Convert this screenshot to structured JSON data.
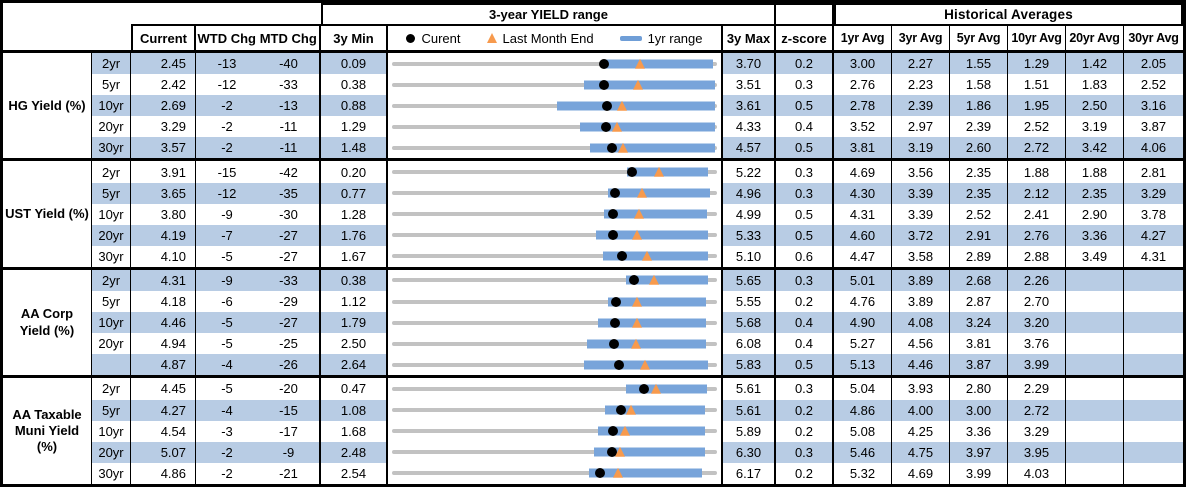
{
  "colors": {
    "band_blue": "#b8cce4",
    "bar_blue": "#78a4da",
    "range_gray": "#c2c2c2",
    "triangle_orange": "#f79a4d",
    "dot_black": "#000000",
    "border_black": "#000000"
  },
  "chart_data": {
    "type": "table",
    "title": "3-year YIELD range",
    "historical_title": "Historical Averages",
    "columns": {
      "current": "Current",
      "wtd": "WTD Chg",
      "mtd": "MTD Chg",
      "min": "3y Min",
      "max": "3y Max",
      "zscore": "z-score",
      "avgs": [
        "1yr Avg",
        "3yr Avg",
        "5yr Avg",
        "10yr Avg",
        "20yr Avg",
        "30yr Avg"
      ]
    },
    "legend": [
      {
        "marker": "black-dot",
        "label": "Curent"
      },
      {
        "marker": "orange-triangle",
        "label": "Last Month End"
      },
      {
        "marker": "blue-bar",
        "label": "1yr range"
      }
    ],
    "chart_semantics": {
      "gray_line": "3y min to 3y max",
      "blue_bar": "1yr range",
      "dot": "current yield",
      "triangle": "last month end yield",
      "units": "percent"
    },
    "groups": [
      {
        "label": "HG Yield (%)",
        "rows": [
          {
            "tenor": "2yr",
            "current": "2.45",
            "wtd": "-13",
            "mtd": "-40",
            "min": "0.09",
            "max": "3.70",
            "z": "0.2",
            "avgs": [
              "3.00",
              "2.27",
              "1.55",
              "1.29",
              "1.42",
              "2.05"
            ],
            "chart": {
              "lo": 0.09,
              "hi": 3.7,
              "bar": [
                2.42,
                3.66
              ],
              "dot": 2.45,
              "tri": 2.85
            }
          },
          {
            "tenor": "5yr",
            "current": "2.42",
            "wtd": "-12",
            "mtd": "-33",
            "min": "0.38",
            "max": "3.51",
            "z": "0.3",
            "avgs": [
              "2.76",
              "2.23",
              "1.58",
              "1.51",
              "1.83",
              "2.52"
            ],
            "chart": {
              "lo": 0.38,
              "hi": 3.51,
              "bar": [
                2.23,
                3.49
              ],
              "dot": 2.42,
              "tri": 2.75
            }
          },
          {
            "tenor": "10yr",
            "current": "2.69",
            "wtd": "-2",
            "mtd": "-13",
            "min": "0.88",
            "max": "3.61",
            "z": "0.5",
            "avgs": [
              "2.78",
              "2.39",
              "1.86",
              "1.95",
              "2.50",
              "3.16"
            ],
            "chart": {
              "lo": 0.88,
              "hi": 3.61,
              "bar": [
                2.27,
                3.59
              ],
              "dot": 2.69,
              "tri": 2.82
            }
          },
          {
            "tenor": "20yr",
            "current": "3.29",
            "wtd": "-2",
            "mtd": "-11",
            "min": "1.29",
            "max": "4.33",
            "z": "0.4",
            "avgs": [
              "3.52",
              "2.97",
              "2.39",
              "2.52",
              "3.19",
              "3.87"
            ],
            "chart": {
              "lo": 1.29,
              "hi": 4.33,
              "bar": [
                3.05,
                4.31
              ],
              "dot": 3.29,
              "tri": 3.4
            }
          },
          {
            "tenor": "30yr",
            "current": "3.57",
            "wtd": "-2",
            "mtd": "-11",
            "min": "1.48",
            "max": "4.57",
            "z": "0.5",
            "avgs": [
              "3.81",
              "3.19",
              "2.60",
              "2.72",
              "3.42",
              "4.06"
            ],
            "chart": {
              "lo": 1.48,
              "hi": 4.57,
              "bar": [
                3.36,
                4.55
              ],
              "dot": 3.57,
              "tri": 3.68
            }
          }
        ]
      },
      {
        "label": "UST Yield (%)",
        "rows": [
          {
            "tenor": "2yr",
            "current": "3.91",
            "wtd": "-15",
            "mtd": "-42",
            "min": "0.20",
            "max": "5.22",
            "z": "0.3",
            "avgs": [
              "4.69",
              "3.56",
              "2.35",
              "1.88",
              "1.88",
              "2.81"
            ],
            "chart": {
              "lo": 0.2,
              "hi": 5.22,
              "bar": [
                3.83,
                5.08
              ],
              "dot": 3.91,
              "tri": 4.33
            }
          },
          {
            "tenor": "5yr",
            "current": "3.65",
            "wtd": "-12",
            "mtd": "-35",
            "min": "0.77",
            "max": "4.96",
            "z": "0.3",
            "avgs": [
              "4.30",
              "3.39",
              "2.35",
              "2.12",
              "2.35",
              "3.29"
            ],
            "chart": {
              "lo": 0.77,
              "hi": 4.96,
              "bar": [
                3.56,
                4.87
              ],
              "dot": 3.65,
              "tri": 4.0
            }
          },
          {
            "tenor": "10yr",
            "current": "3.80",
            "wtd": "-9",
            "mtd": "-30",
            "min": "1.28",
            "max": "4.99",
            "z": "0.5",
            "avgs": [
              "4.31",
              "3.39",
              "2.52",
              "2.41",
              "2.90",
              "3.78"
            ],
            "chart": {
              "lo": 1.28,
              "hi": 4.99,
              "bar": [
                3.7,
                4.88
              ],
              "dot": 3.8,
              "tri": 4.1
            }
          },
          {
            "tenor": "20yr",
            "current": "4.19",
            "wtd": "-7",
            "mtd": "-27",
            "min": "1.76",
            "max": "5.33",
            "z": "0.5",
            "avgs": [
              "4.60",
              "3.72",
              "2.91",
              "2.76",
              "3.36",
              "4.27"
            ],
            "chart": {
              "lo": 1.76,
              "hi": 5.33,
              "bar": [
                4.0,
                5.23
              ],
              "dot": 4.19,
              "tri": 4.46
            }
          },
          {
            "tenor": "30yr",
            "current": "4.10",
            "wtd": "-5",
            "mtd": "-27",
            "min": "1.67",
            "max": "5.10",
            "z": "0.6",
            "avgs": [
              "4.47",
              "3.58",
              "2.89",
              "2.88",
              "3.49",
              "4.31"
            ],
            "chart": {
              "lo": 1.67,
              "hi": 5.1,
              "bar": [
                3.9,
                5.0
              ],
              "dot": 4.1,
              "tri": 4.37
            }
          }
        ]
      },
      {
        "label": "AA Corp Yield (%)",
        "rows": [
          {
            "tenor": "2yr",
            "current": "4.31",
            "wtd": "-9",
            "mtd": "-33",
            "min": "0.38",
            "max": "5.65",
            "z": "0.3",
            "avgs": [
              "5.01",
              "3.89",
              "2.68",
              "2.26",
              "",
              ""
            ],
            "chart": {
              "lo": 0.38,
              "hi": 5.65,
              "bar": [
                4.17,
                5.5
              ],
              "dot": 4.31,
              "tri": 4.64
            }
          },
          {
            "tenor": "5yr",
            "current": "4.18",
            "wtd": "-6",
            "mtd": "-29",
            "min": "1.12",
            "max": "5.55",
            "z": "0.2",
            "avgs": [
              "4.76",
              "3.89",
              "2.87",
              "2.70",
              "",
              ""
            ],
            "chart": {
              "lo": 1.12,
              "hi": 5.55,
              "bar": [
                4.07,
                5.4
              ],
              "dot": 4.18,
              "tri": 4.47
            }
          },
          {
            "tenor": "10yr",
            "current": "4.46",
            "wtd": "-5",
            "mtd": "-27",
            "min": "1.79",
            "max": "5.68",
            "z": "0.4",
            "avgs": [
              "4.90",
              "4.08",
              "3.24",
              "3.20",
              "",
              ""
            ],
            "chart": {
              "lo": 1.79,
              "hi": 5.68,
              "bar": [
                4.26,
                5.55
              ],
              "dot": 4.46,
              "tri": 4.73
            }
          },
          {
            "tenor": "20yr",
            "current": "4.94",
            "wtd": "-5",
            "mtd": "-25",
            "min": "2.50",
            "max": "6.08",
            "z": "0.4",
            "avgs": [
              "5.27",
              "4.56",
              "3.81",
              "3.76",
              "",
              ""
            ],
            "chart": {
              "lo": 2.5,
              "hi": 6.08,
              "bar": [
                4.65,
                5.96
              ],
              "dot": 4.94,
              "tri": 5.19
            }
          },
          {
            "tenor": "",
            "current": "4.87",
            "wtd": "-4",
            "mtd": "-26",
            "min": "2.64",
            "max": "5.83",
            "z": "0.5",
            "avgs": [
              "5.13",
              "4.46",
              "3.87",
              "3.99",
              "",
              ""
            ],
            "chart": {
              "lo": 2.64,
              "hi": 5.83,
              "bar": [
                4.52,
                5.74
              ],
              "dot": 4.87,
              "tri": 5.13
            }
          }
        ]
      },
      {
        "label": "AA Taxable Muni Yield (%)",
        "rows": [
          {
            "tenor": "2yr",
            "current": "4.45",
            "wtd": "-5",
            "mtd": "-20",
            "min": "0.47",
            "max": "5.61",
            "z": "0.3",
            "avgs": [
              "5.04",
              "3.93",
              "2.80",
              "2.29",
              "",
              ""
            ],
            "chart": {
              "lo": 0.47,
              "hi": 5.61,
              "bar": [
                4.17,
                5.45
              ],
              "dot": 4.45,
              "tri": 4.65
            }
          },
          {
            "tenor": "5yr",
            "current": "4.27",
            "wtd": "-4",
            "mtd": "-15",
            "min": "1.08",
            "max": "5.61",
            "z": "0.2",
            "avgs": [
              "4.86",
              "4.00",
              "3.00",
              "2.72",
              "",
              ""
            ],
            "chart": {
              "lo": 1.08,
              "hi": 5.61,
              "bar": [
                4.05,
                5.44
              ],
              "dot": 4.27,
              "tri": 4.42
            }
          },
          {
            "tenor": "10yr",
            "current": "4.54",
            "wtd": "-3",
            "mtd": "-17",
            "min": "1.68",
            "max": "5.89",
            "z": "0.2",
            "avgs": [
              "5.08",
              "4.25",
              "3.36",
              "3.29",
              "",
              ""
            ],
            "chart": {
              "lo": 1.68,
              "hi": 5.89,
              "bar": [
                4.35,
                5.73
              ],
              "dot": 4.54,
              "tri": 4.71
            }
          },
          {
            "tenor": "20yr",
            "current": "5.07",
            "wtd": "-2",
            "mtd": "-9",
            "min": "2.48",
            "max": "6.30",
            "z": "0.3",
            "avgs": [
              "5.46",
              "4.75",
              "3.97",
              "3.95",
              "",
              ""
            ],
            "chart": {
              "lo": 2.48,
              "hi": 6.3,
              "bar": [
                4.85,
                6.16
              ],
              "dot": 5.07,
              "tri": 5.16
            }
          },
          {
            "tenor": "30yr",
            "current": "4.86",
            "wtd": "-2",
            "mtd": "-21",
            "min": "2.54",
            "max": "6.17",
            "z": "0.2",
            "avgs": [
              "5.32",
              "4.69",
              "3.99",
              "4.03",
              "",
              ""
            ],
            "chart": {
              "lo": 2.54,
              "hi": 6.17,
              "bar": [
                4.74,
                6.0
              ],
              "dot": 4.86,
              "tri": 5.07
            }
          }
        ]
      }
    ]
  }
}
